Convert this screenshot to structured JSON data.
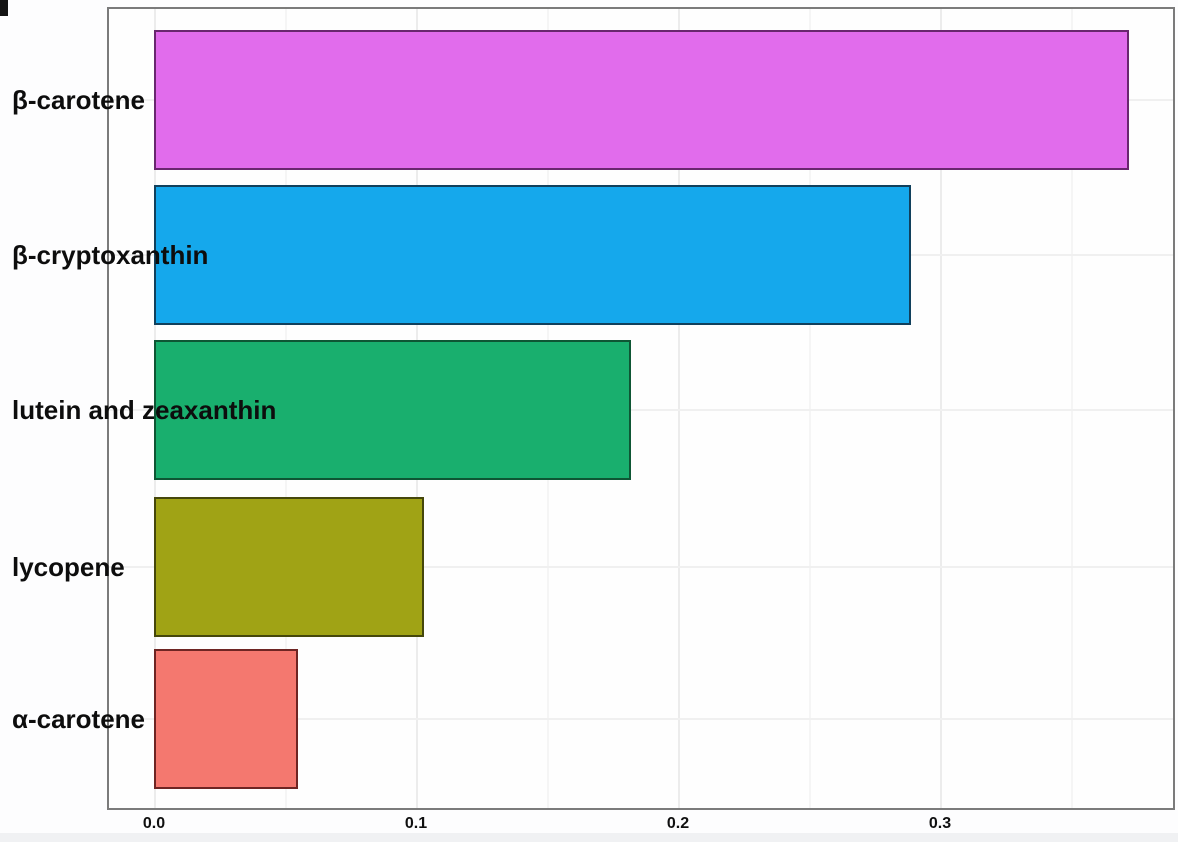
{
  "chart_data": {
    "type": "bar",
    "orientation": "horizontal",
    "title": "",
    "xlabel": "",
    "ylabel": "",
    "categories": [
      "β-carotene",
      "β-cryptoxanthin",
      "lutein and zeaxanthin",
      "lycopene",
      "α-carotene"
    ],
    "values": [
      0.372,
      0.289,
      0.182,
      0.103,
      0.055
    ],
    "bar_fill_colors": [
      "#e16cec",
      "#15a8ec",
      "#19af6e",
      "#a0a315",
      "#f4786f"
    ],
    "bar_border_colors": [
      "#69276f",
      "#11405c",
      "#0e5634",
      "#45470b",
      "#6e2523"
    ],
    "x_ticks": [
      "0.0",
      "0.1",
      "0.2",
      "0.3"
    ],
    "x_tick_values": [
      0.0,
      0.1,
      0.2,
      0.3
    ],
    "x_minor_gridlines": [
      0.05,
      0.15,
      0.25,
      0.35
    ],
    "xlim": [
      -0.017,
      0.389
    ],
    "grid": "on",
    "legend": "none"
  },
  "colors": {
    "plot_border": "#7b7b7b",
    "grid_major": "#ececec",
    "grid_minor": "#f5f5f5",
    "grid_horizontal": "#f0f0f0",
    "page_background": "#fdfdfe",
    "bottom_strip": "#f0f1f3",
    "label_text": "#0d0d0d"
  }
}
